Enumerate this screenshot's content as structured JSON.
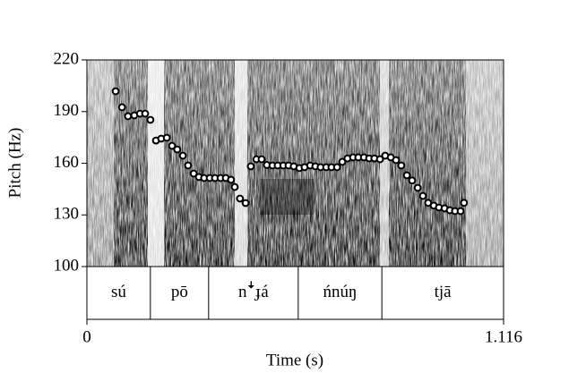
{
  "chart_data": {
    "type": "scatter",
    "xlabel": "Time (s)",
    "ylabel": "Pitch (Hz)",
    "xlim": [
      0,
      1.116
    ],
    "ylim": [
      100,
      220
    ],
    "xticks": [
      0,
      1.116
    ],
    "yticks": [
      100,
      130,
      160,
      190,
      220
    ],
    "color": "#ffffff",
    "x": [
      0.077,
      0.094,
      0.11,
      0.127,
      0.142,
      0.156,
      0.17,
      0.185,
      0.199,
      0.214,
      0.228,
      0.242,
      0.257,
      0.271,
      0.286,
      0.3,
      0.314,
      0.329,
      0.343,
      0.358,
      0.372,
      0.386,
      0.396,
      0.41,
      0.425,
      0.439,
      0.454,
      0.468,
      0.482,
      0.497,
      0.511,
      0.526,
      0.54,
      0.554,
      0.569,
      0.583,
      0.598,
      0.612,
      0.626,
      0.641,
      0.655,
      0.67,
      0.684,
      0.698,
      0.713,
      0.727,
      0.742,
      0.756,
      0.77,
      0.785,
      0.799,
      0.814,
      0.828,
      0.842,
      0.857,
      0.871,
      0.886,
      0.9,
      0.914,
      0.929,
      0.943,
      0.958,
      0.972,
      0.986,
      1.001,
      1.01
    ],
    "values": [
      201.8,
      192.5,
      187.3,
      187.8,
      188.8,
      188.8,
      185.2,
      173.2,
      174.3,
      174.8,
      170.1,
      168.0,
      164.4,
      158.7,
      154.0,
      152.0,
      151.4,
      151.4,
      151.4,
      151.4,
      151.4,
      150.4,
      146.2,
      139.5,
      136.9,
      158.2,
      162.3,
      162.3,
      159.0,
      158.7,
      158.7,
      158.7,
      158.7,
      158.2,
      157.2,
      157.7,
      158.7,
      158.2,
      157.7,
      157.7,
      157.7,
      157.7,
      160.8,
      162.8,
      163.4,
      163.4,
      163.4,
      162.8,
      162.8,
      162.3,
      164.4,
      163.4,
      161.8,
      158.7,
      153.0,
      150.0,
      145.7,
      141.0,
      137.0,
      135.4,
      134.3,
      133.8,
      132.7,
      132.2,
      132.2,
      137.0
    ],
    "tier": [
      {
        "label": "sú",
        "start": 0,
        "end": 0.17
      },
      {
        "label": "pō",
        "start": 0.17,
        "end": 0.326
      },
      {
        "label": "nꜜɟá",
        "start": 0.326,
        "end": 0.566
      },
      {
        "label": "ńnúŋ",
        "start": 0.566,
        "end": 0.79
      },
      {
        "label": "tjā",
        "start": 0.79,
        "end": 1.116
      }
    ]
  }
}
